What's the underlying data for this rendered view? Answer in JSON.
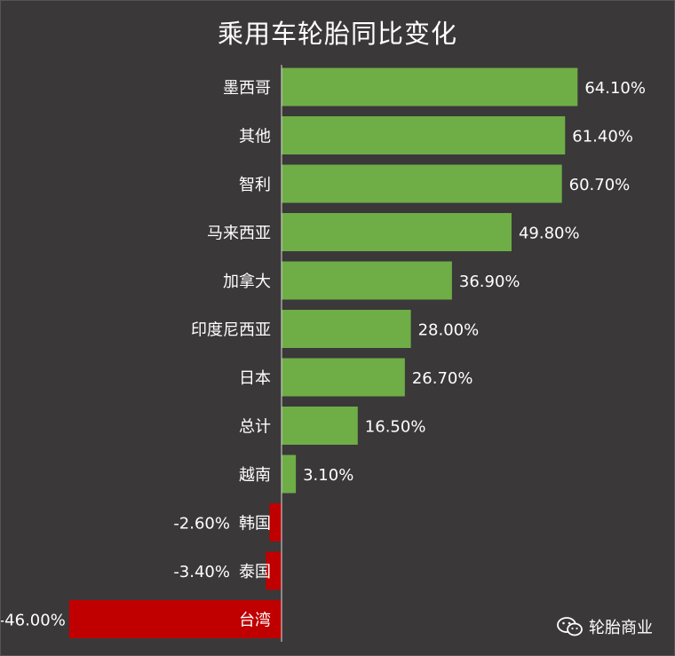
{
  "chart_data": {
    "type": "bar",
    "orientation": "horizontal",
    "title": "乘用车轮胎同比变化",
    "categories": [
      "墨西哥",
      "其他",
      "智利",
      "马来西亚",
      "加拿大",
      "印度尼西亚",
      "日本",
      "总计",
      "越南",
      "韩国",
      "泰国",
      "台湾"
    ],
    "values": [
      64.1,
      61.4,
      60.7,
      49.8,
      36.9,
      28.0,
      26.7,
      16.5,
      3.1,
      -2.6,
      -3.4,
      -46.0
    ],
    "value_labels": [
      "64.10%",
      "61.40%",
      "60.70%",
      "49.80%",
      "36.90%",
      "28.00%",
      "26.70%",
      "16.50%",
      "3.10%",
      "-2.60%",
      "-3.40%",
      "-46.00%"
    ],
    "unit": "%",
    "positive_color": "#6fad47",
    "negative_color": "#c00000",
    "grid": false,
    "legend": "none"
  },
  "watermark": {
    "icon": "wechat-icon",
    "text": "轮胎商业"
  }
}
